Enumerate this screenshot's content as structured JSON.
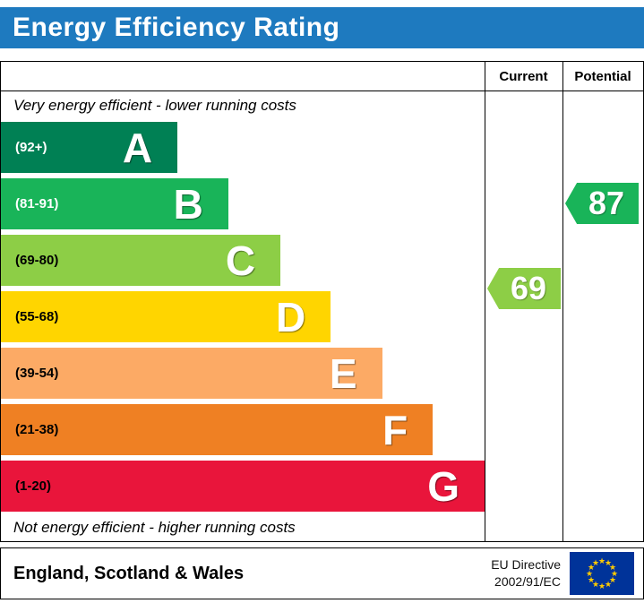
{
  "title": "Energy Efficiency Rating",
  "columns": {
    "current": "Current",
    "potential": "Potential"
  },
  "notes": {
    "top": "Very energy efficient - lower running costs",
    "bottom": "Not energy efficient - higher running costs"
  },
  "footer": {
    "region": "England, Scotland & Wales",
    "directive_line1": "EU Directive",
    "directive_line2": "2002/91/EC",
    "flag_colors": {
      "background": "#003399",
      "stars": "#ffcc00"
    }
  },
  "chart_data": {
    "type": "bar",
    "title": "Energy Efficiency Rating",
    "categories": [
      "A",
      "B",
      "C",
      "D",
      "E",
      "F",
      "G"
    ],
    "bands": [
      {
        "letter": "A",
        "range": "(92+)",
        "color": "#008054",
        "text_color": "#ffffff",
        "width_pct": 36.5
      },
      {
        "letter": "B",
        "range": "(81-91)",
        "color": "#19b459",
        "text_color": "#ffffff",
        "width_pct": 47.0
      },
      {
        "letter": "C",
        "range": "(69-80)",
        "color": "#8dce46",
        "text_color": "#000000",
        "width_pct": 57.8
      },
      {
        "letter": "D",
        "range": "(55-68)",
        "color": "#ffd500",
        "text_color": "#000000",
        "width_pct": 68.2
      },
      {
        "letter": "E",
        "range": "(39-54)",
        "color": "#fcaa65",
        "text_color": "#000000",
        "width_pct": 78.8
      },
      {
        "letter": "F",
        "range": "(21-38)",
        "color": "#ef8023",
        "text_color": "#000000",
        "width_pct": 89.3
      },
      {
        "letter": "G",
        "range": "(1-20)",
        "color": "#e9153b",
        "text_color": "#000000",
        "width_pct": 100
      }
    ],
    "current": {
      "value": 69,
      "band": "C",
      "color": "#8dce46"
    },
    "potential": {
      "value": 87,
      "band": "B",
      "color": "#19b459"
    },
    "legend_position": "none",
    "grid": false
  }
}
